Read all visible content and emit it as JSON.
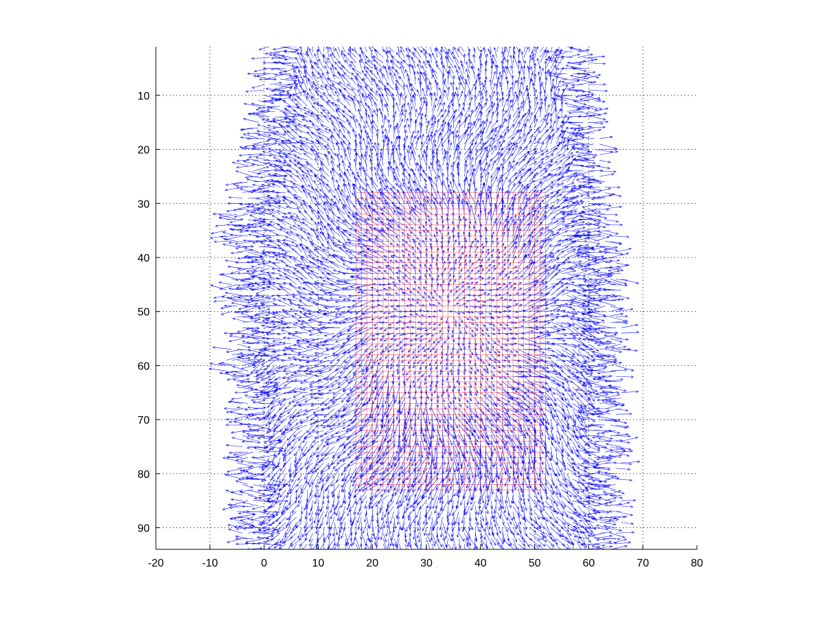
{
  "chart_data": {
    "type": "quiver",
    "title": "",
    "xlabel": "",
    "ylabel": "",
    "xlim": [
      -20,
      80
    ],
    "ylim": [
      1,
      94
    ],
    "y_reversed": true,
    "grid": true,
    "grid_style": "dotted",
    "xticks": [
      -20,
      -10,
      0,
      10,
      20,
      30,
      40,
      50,
      60,
      70,
      80
    ],
    "xtick_labels": [
      "-20",
      "-10",
      "0",
      "10",
      "20",
      "30",
      "40",
      "50",
      "60",
      "70",
      "80"
    ],
    "yticks": [
      10,
      20,
      30,
      40,
      50,
      60,
      70,
      80,
      90
    ],
    "ytick_labels": [
      "10",
      "20",
      "30",
      "40",
      "50",
      "60",
      "70",
      "80",
      "90"
    ],
    "series": [
      {
        "kind": "grid",
        "color": "#ff0000",
        "x_range": [
          17,
          52
        ],
        "y_range": [
          28,
          83
        ],
        "spacing": 1
      },
      {
        "kind": "vector_field",
        "color": "#0000ff",
        "x_range": [
          -5,
          66
        ],
        "y_range": [
          1,
          94
        ],
        "spacing": 1,
        "description_hint": "deformation vectors around head contour"
      }
    ]
  }
}
